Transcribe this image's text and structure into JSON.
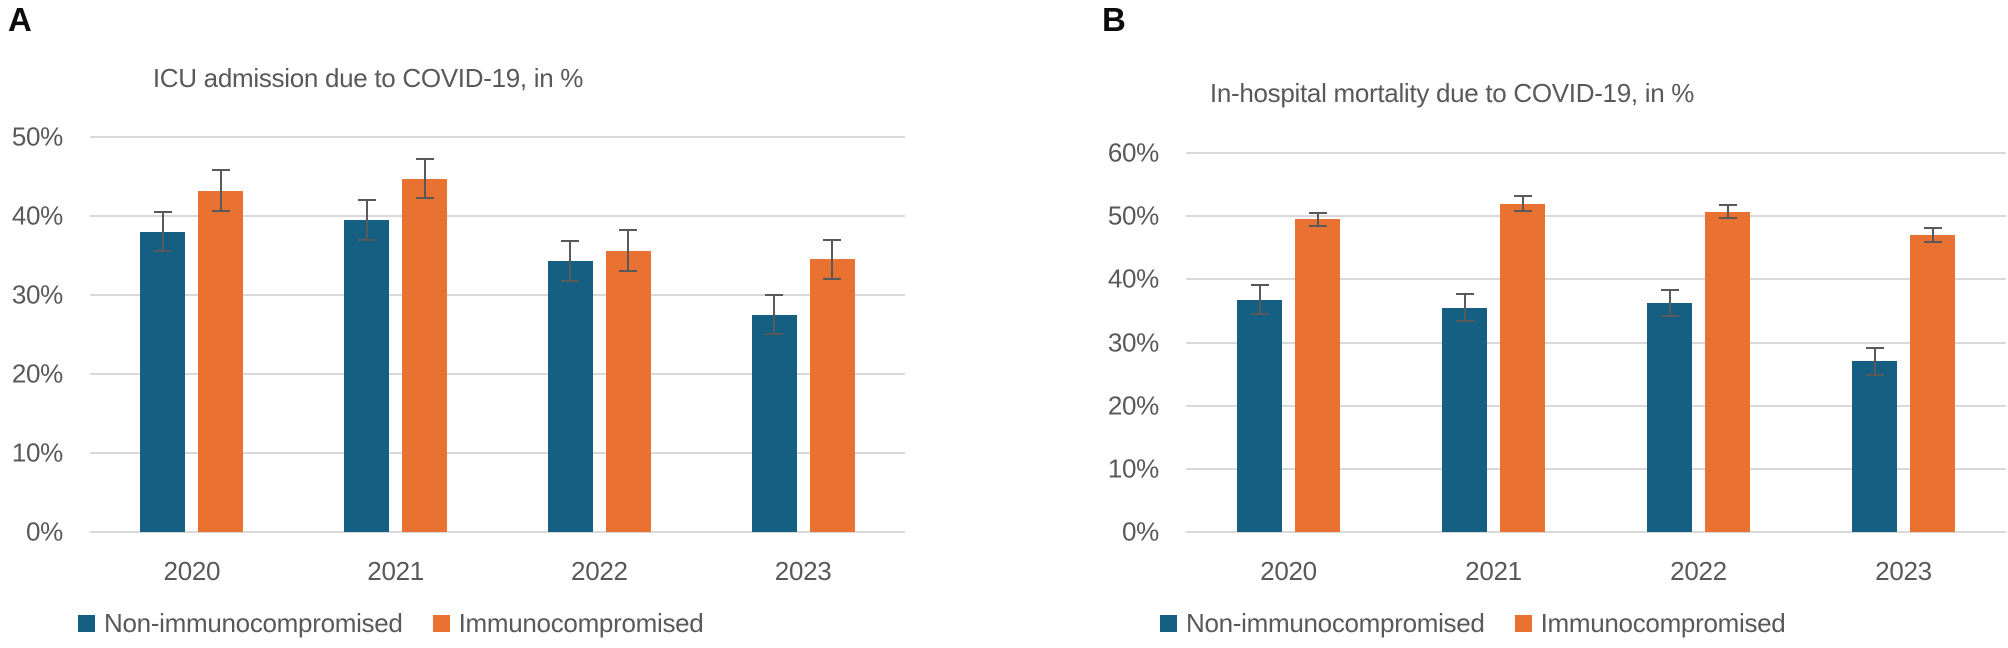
{
  "figure": {
    "background": "#ffffff",
    "text_color": "#595959",
    "gridline_color": "#d9d9d9",
    "errorbar_color": "#595959"
  },
  "chart_data": [
    {
      "type": "bar",
      "panel_label": "A",
      "title": "ICU admission due to COVID-19, in %",
      "categories": [
        "2020",
        "2021",
        "2022",
        "2023"
      ],
      "series": [
        {
          "name": "Non-immunocompromised",
          "color": "#156082",
          "values": [
            38.0,
            39.5,
            34.3,
            27.5
          ],
          "errors": [
            2.6,
            2.7,
            2.6,
            2.6
          ]
        },
        {
          "name": "Immunocompromised",
          "color": "#E97132",
          "values": [
            43.2,
            44.7,
            35.6,
            34.5
          ],
          "errors": [
            2.7,
            2.6,
            2.7,
            2.6
          ]
        }
      ],
      "ylabel_ticks": [
        "0%",
        "10%",
        "20%",
        "30%",
        "40%",
        "50%"
      ],
      "ylim": [
        0,
        50
      ],
      "grid": true,
      "error_bars": true,
      "legend_position": "bottom"
    },
    {
      "type": "bar",
      "panel_label": "B",
      "title": "In-hospital mortality due to COVID-19, in %",
      "categories": [
        "2020",
        "2021",
        "2022",
        "2023"
      ],
      "series": [
        {
          "name": "Non-immunocompromised",
          "color": "#156082",
          "values": [
            36.8,
            35.5,
            36.3,
            27.0
          ],
          "errors": [
            2.4,
            2.3,
            2.2,
            2.3
          ]
        },
        {
          "name": "Immunocompromised",
          "color": "#E97132",
          "values": [
            49.5,
            52.0,
            50.7,
            47.0
          ],
          "errors": [
            1.2,
            1.3,
            1.2,
            1.3
          ]
        }
      ],
      "ylabel_ticks": [
        "0%",
        "10%",
        "20%",
        "30%",
        "40%",
        "50%",
        "60%"
      ],
      "ylim": [
        0,
        60
      ],
      "grid": true,
      "error_bars": true,
      "legend_position": "bottom"
    }
  ]
}
